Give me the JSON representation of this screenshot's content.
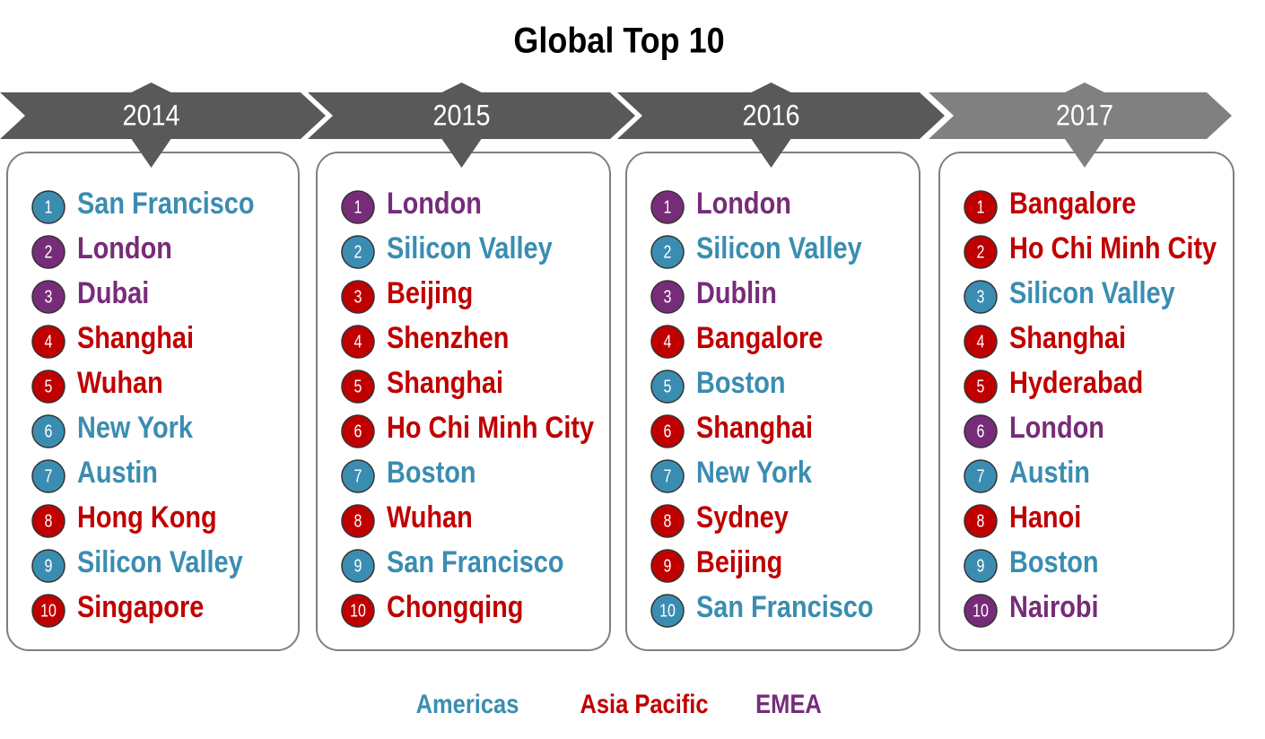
{
  "title": "Global Top 10",
  "legend": [
    {
      "name": "Americas",
      "color": "#3a8db1"
    },
    {
      "name": "Asia Pacific",
      "color": "#c00000"
    },
    {
      "name": "EMEA",
      "color": "#772c79"
    }
  ],
  "columns": [
    {
      "year": "2014",
      "items": [
        {
          "rank": 1,
          "city": "San Francisco",
          "region": "Americas"
        },
        {
          "rank": 2,
          "city": "London",
          "region": "EMEA"
        },
        {
          "rank": 3,
          "city": "Dubai",
          "region": "EMEA"
        },
        {
          "rank": 4,
          "city": "Shanghai",
          "region": "Asia Pacific"
        },
        {
          "rank": 5,
          "city": "Wuhan",
          "region": "Asia Pacific"
        },
        {
          "rank": 6,
          "city": "New York",
          "region": "Americas"
        },
        {
          "rank": 7,
          "city": "Austin",
          "region": "Americas"
        },
        {
          "rank": 8,
          "city": "Hong Kong",
          "region": "Asia Pacific"
        },
        {
          "rank": 9,
          "city": "Silicon Valley",
          "region": "Americas"
        },
        {
          "rank": 10,
          "city": "Singapore",
          "region": "Asia Pacific"
        }
      ]
    },
    {
      "year": "2015",
      "items": [
        {
          "rank": 1,
          "city": "London",
          "region": "EMEA"
        },
        {
          "rank": 2,
          "city": "Silicon Valley",
          "region": "Americas"
        },
        {
          "rank": 3,
          "city": "Beijing",
          "region": "Asia Pacific"
        },
        {
          "rank": 4,
          "city": "Shenzhen",
          "region": "Asia Pacific"
        },
        {
          "rank": 5,
          "city": "Shanghai",
          "region": "Asia Pacific"
        },
        {
          "rank": 6,
          "city": "Ho Chi Minh City",
          "region": "Asia Pacific"
        },
        {
          "rank": 7,
          "city": "Boston",
          "region": "Americas"
        },
        {
          "rank": 8,
          "city": "Wuhan",
          "region": "Asia Pacific"
        },
        {
          "rank": 9,
          "city": "San Francisco",
          "region": "Americas"
        },
        {
          "rank": 10,
          "city": "Chongqing",
          "region": "Asia Pacific"
        }
      ]
    },
    {
      "year": "2016",
      "items": [
        {
          "rank": 1,
          "city": "London",
          "region": "EMEA"
        },
        {
          "rank": 2,
          "city": "Silicon Valley",
          "region": "Americas"
        },
        {
          "rank": 3,
          "city": "Dublin",
          "region": "EMEA"
        },
        {
          "rank": 4,
          "city": "Bangalore",
          "region": "Asia Pacific"
        },
        {
          "rank": 5,
          "city": "Boston",
          "region": "Americas"
        },
        {
          "rank": 6,
          "city": "Shanghai",
          "region": "Asia Pacific"
        },
        {
          "rank": 7,
          "city": "New York",
          "region": "Americas"
        },
        {
          "rank": 8,
          "city": "Sydney",
          "region": "Asia Pacific"
        },
        {
          "rank": 9,
          "city": "Beijing",
          "region": "Asia Pacific"
        },
        {
          "rank": 10,
          "city": "San Francisco",
          "region": "Americas"
        }
      ]
    },
    {
      "year": "2017",
      "items": [
        {
          "rank": 1,
          "city": "Bangalore",
          "region": "Asia Pacific"
        },
        {
          "rank": 2,
          "city": "Ho Chi Minh City",
          "region": "Asia Pacific"
        },
        {
          "rank": 3,
          "city": "Silicon Valley",
          "region": "Americas"
        },
        {
          "rank": 4,
          "city": "Shanghai",
          "region": "Asia Pacific"
        },
        {
          "rank": 5,
          "city": "Hyderabad",
          "region": "Asia Pacific"
        },
        {
          "rank": 6,
          "city": "London",
          "region": "EMEA"
        },
        {
          "rank": 7,
          "city": "Austin",
          "region": "Americas"
        },
        {
          "rank": 8,
          "city": "Hanoi",
          "region": "Asia Pacific"
        },
        {
          "rank": 9,
          "city": "Boston",
          "region": "Americas"
        },
        {
          "rank": 10,
          "city": "Nairobi",
          "region": "EMEA"
        }
      ]
    }
  ]
}
